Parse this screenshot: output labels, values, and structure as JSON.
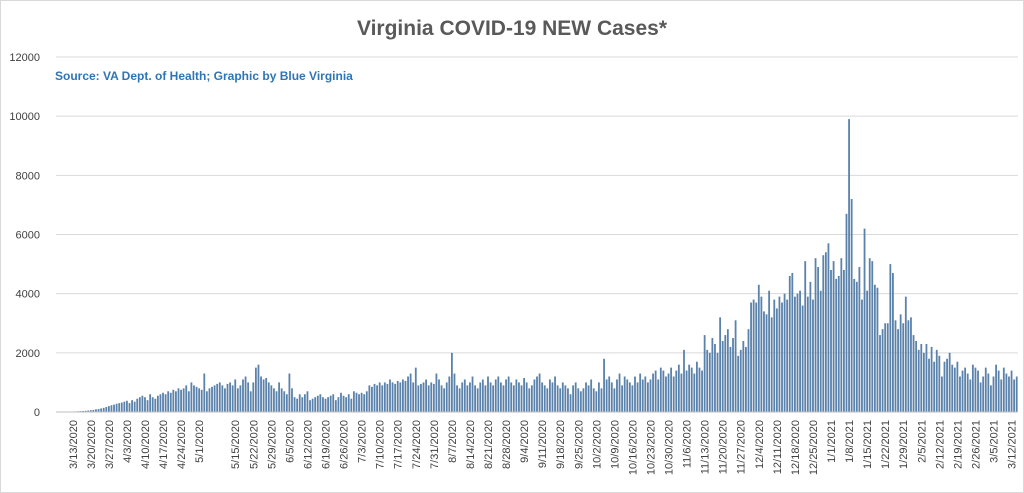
{
  "chart_data": {
    "type": "bar",
    "title": "Virginia COVID-19 NEW Cases*",
    "subtitle": "Source: VA Dept. of Health; Graphic by Blue Virginia",
    "color": "#5b82ab",
    "grid": true,
    "ylim": [
      0,
      12000
    ],
    "yticks": [
      0,
      2000,
      4000,
      6000,
      8000,
      10000,
      12000
    ],
    "categories": [
      null,
      null,
      null,
      null,
      null,
      null,
      "3/13/2020",
      null,
      null,
      null,
      null,
      null,
      null,
      "3/20/2020",
      null,
      null,
      null,
      null,
      null,
      null,
      "3/27/2020",
      null,
      null,
      null,
      null,
      null,
      null,
      "4/3/2020",
      null,
      null,
      null,
      null,
      null,
      null,
      "4/10/2020",
      null,
      null,
      null,
      null,
      null,
      null,
      "4/17/2020",
      null,
      null,
      null,
      null,
      null,
      null,
      "4/24/2020",
      null,
      null,
      null,
      null,
      null,
      null,
      "5/1/2020",
      null,
      null,
      null,
      null,
      null,
      null,
      null,
      null,
      null,
      null,
      null,
      null,
      null,
      "5/15/2020",
      null,
      null,
      null,
      null,
      null,
      null,
      "5/22/2020",
      null,
      null,
      null,
      null,
      null,
      null,
      "5/29/2020",
      null,
      null,
      null,
      null,
      null,
      null,
      "6/5/2020",
      null,
      null,
      null,
      null,
      null,
      null,
      "6/12/2020",
      null,
      null,
      null,
      null,
      null,
      null,
      "6/19/2020",
      null,
      null,
      null,
      null,
      null,
      null,
      "6/26/2020",
      null,
      null,
      null,
      null,
      null,
      null,
      "7/3/2020",
      null,
      null,
      null,
      null,
      null,
      null,
      "7/10/2020",
      null,
      null,
      null,
      null,
      null,
      null,
      "7/17/2020",
      null,
      null,
      null,
      null,
      null,
      null,
      "7/24/2020",
      null,
      null,
      null,
      null,
      null,
      null,
      "7/31/2020",
      null,
      null,
      null,
      null,
      null,
      null,
      "8/7/2020",
      null,
      null,
      null,
      null,
      null,
      null,
      "8/14/2020",
      null,
      null,
      null,
      null,
      null,
      null,
      "8/21/2020",
      null,
      null,
      null,
      null,
      null,
      null,
      "8/28/2020",
      null,
      null,
      null,
      null,
      null,
      null,
      "9/4/2020",
      null,
      null,
      null,
      null,
      null,
      null,
      "9/11/2020",
      null,
      null,
      null,
      null,
      null,
      null,
      "9/18/2020",
      null,
      null,
      null,
      null,
      null,
      null,
      "9/25/2020",
      null,
      null,
      null,
      null,
      null,
      null,
      "10/2/2020",
      null,
      null,
      null,
      null,
      null,
      null,
      "10/9/2020",
      null,
      null,
      null,
      null,
      null,
      null,
      "10/16/2020",
      null,
      null,
      null,
      null,
      null,
      null,
      "10/23/2020",
      null,
      null,
      null,
      null,
      null,
      null,
      "10/30/2020",
      null,
      null,
      null,
      null,
      null,
      null,
      "11/6/2020",
      null,
      null,
      null,
      null,
      null,
      null,
      "11/13/2020",
      null,
      null,
      null,
      null,
      null,
      null,
      "11/20/2020",
      null,
      null,
      null,
      null,
      null,
      null,
      "11/27/2020",
      null,
      null,
      null,
      null,
      null,
      null,
      "12/4/2020",
      null,
      null,
      null,
      null,
      null,
      null,
      "12/11/2020",
      null,
      null,
      null,
      null,
      null,
      null,
      "12/18/2020",
      null,
      null,
      null,
      null,
      null,
      null,
      "12/25/2020",
      null,
      null,
      null,
      null,
      null,
      null,
      "1/1/2021",
      null,
      null,
      null,
      null,
      null,
      null,
      "1/8/2021",
      null,
      null,
      null,
      null,
      null,
      null,
      "1/15/2021",
      null,
      null,
      null,
      null,
      null,
      null,
      "1/22/2021",
      null,
      null,
      null,
      null,
      null,
      null,
      "1/29/2021",
      null,
      null,
      null,
      null,
      null,
      null,
      "2/5/2021",
      null,
      null,
      null,
      null,
      null,
      null,
      "2/12/2021",
      null,
      null,
      null,
      null,
      null,
      null,
      "2/19/2021",
      null,
      null,
      null,
      null,
      null,
      null,
      "2/26/2021",
      null,
      null,
      null,
      null,
      null,
      null,
      "3/5/2021",
      null,
      null,
      null,
      null,
      null,
      null,
      "3/12/2021",
      null,
      null
    ],
    "values": [
      2,
      3,
      5,
      8,
      10,
      12,
      15,
      20,
      25,
      30,
      35,
      40,
      50,
      60,
      70,
      90,
      100,
      120,
      140,
      170,
      200,
      230,
      250,
      280,
      300,
      320,
      350,
      380,
      300,
      400,
      350,
      450,
      500,
      550,
      500,
      400,
      600,
      500,
      450,
      550,
      600,
      650,
      600,
      700,
      650,
      750,
      700,
      800,
      750,
      800,
      900,
      700,
      1000,
      900,
      850,
      800,
      750,
      1300,
      700,
      800,
      850,
      900,
      950,
      1000,
      900,
      800,
      950,
      1000,
      900,
      1100,
      800,
      900,
      1100,
      1200,
      1000,
      700,
      1000,
      1500,
      1600,
      1200,
      1100,
      1150,
      1000,
      900,
      800,
      700,
      1000,
      800,
      700,
      600,
      1300,
      800,
      500,
      450,
      600,
      500,
      600,
      700,
      400,
      450,
      500,
      550,
      600,
      500,
      450,
      500,
      550,
      600,
      400,
      500,
      650,
      550,
      500,
      600,
      450,
      700,
      650,
      600,
      650,
      600,
      700,
      900,
      850,
      950,
      900,
      1000,
      900,
      1000,
      950,
      1100,
      1000,
      950,
      1050,
      1000,
      1100,
      1050,
      1200,
      1300,
      1000,
      1500,
      900,
      950,
      1000,
      1100,
      900,
      1000,
      950,
      1300,
      1100,
      900,
      800,
      1000,
      1200,
      2000,
      1300,
      900,
      800,
      1000,
      1100,
      900,
      1000,
      1200,
      900,
      800,
      1000,
      1100,
      900,
      1200,
      1000,
      900,
      1100,
      1200,
      1000,
      900,
      1100,
      1200,
      1000,
      900,
      1100,
      1000,
      900,
      1150,
      1000,
      800,
      900,
      1100,
      1200,
      1300,
      1000,
      900,
      800,
      1100,
      1000,
      1200,
      900,
      800,
      1000,
      900,
      800,
      600,
      900,
      1000,
      800,
      700,
      800,
      1000,
      900,
      1100,
      800,
      700,
      1000,
      800,
      1800,
      1100,
      1200,
      1000,
      800,
      1100,
      1300,
      900,
      1200,
      1100,
      1000,
      900,
      1200,
      1000,
      1300,
      1100,
      1200,
      1000,
      1100,
      1300,
      1400,
      1100,
      1500,
      1400,
      1200,
      1300,
      1500,
      1200,
      1400,
      1600,
      1300,
      2100,
      1400,
      1600,
      1500,
      1300,
      1700,
      1500,
      1400,
      2600,
      2100,
      2000,
      2500,
      2300,
      2000,
      3200,
      2400,
      2600,
      2800,
      2200,
      2500,
      3100,
      1900,
      2100,
      2400,
      2200,
      2800,
      3700,
      3800,
      3700,
      4300,
      3900,
      3400,
      3300,
      4100,
      3200,
      3800,
      3500,
      3900,
      3700,
      4000,
      3800,
      4600,
      4700,
      3900,
      4000,
      4100,
      3600,
      5100,
      3900,
      4400,
      3800,
      5200,
      4900,
      4100,
      5300,
      5400,
      5700,
      4800,
      5100,
      4500,
      4600,
      5200,
      4800,
      6700,
      9900,
      7200,
      4500,
      4400,
      4900,
      3800,
      6200,
      4100,
      5200,
      5100,
      4300,
      4200,
      2600,
      2800,
      3000,
      3000,
      5000,
      4700,
      3100,
      2800,
      3300,
      3000,
      3900,
      3100,
      3200,
      2600,
      2400,
      2100,
      2300,
      2000,
      2300,
      1800,
      2200,
      1700,
      2100,
      1900,
      1200,
      1700,
      1800,
      2000,
      1600,
      1500,
      1700,
      1200,
      1400,
      1500,
      1300,
      1100,
      1600,
      1500,
      1400,
      1000,
      1200,
      1500,
      1300,
      900,
      1200,
      1600,
      1400,
      1100,
      1500,
      1300,
      1200,
      1400,
      1100,
      1200
    ]
  }
}
